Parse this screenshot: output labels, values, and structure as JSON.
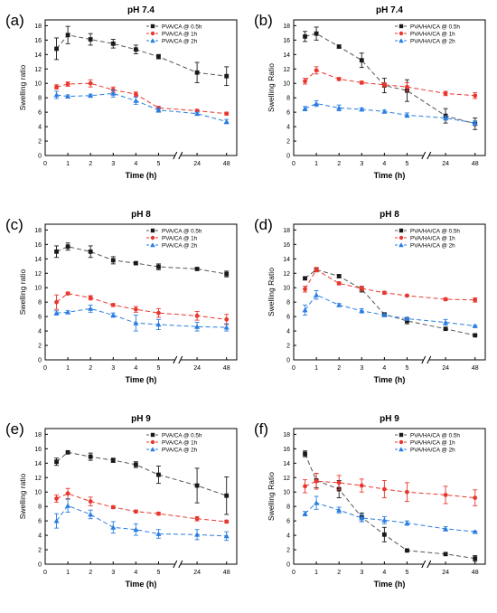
{
  "figure": {
    "x_tick_labels": [
      "0",
      "1",
      "2",
      "3",
      "4",
      "5",
      "24",
      "48"
    ],
    "y_tick_labels": [
      "0",
      "2",
      "4",
      "6",
      "8",
      "10",
      "12",
      "14",
      "16",
      "18"
    ],
    "colors": {
      "s0": "#1a1a1a",
      "s1": "#e8372e",
      "s2": "#2a7de1",
      "line0": "#555555",
      "line1": "#e8372e",
      "line2": "#2a7de1"
    },
    "markers": [
      "square",
      "circle",
      "triangle"
    ]
  },
  "chart_data": [
    {
      "type": "line",
      "panel_label": "(a)",
      "title": "pH 7.4",
      "xlabel": "Time (h)",
      "ylabel": "Swelling ratio",
      "ylim": [
        0,
        18
      ],
      "x": [
        0.5,
        1,
        2,
        3,
        4,
        5,
        24,
        48
      ],
      "legend_position": "top-right",
      "series": [
        {
          "name": "PVA/CA @ 0.5h",
          "values": [
            14.8,
            16.7,
            16.1,
            15.5,
            14.7,
            13.7,
            11.5,
            11.0
          ],
          "errors": [
            1.5,
            1.2,
            0.8,
            0.6,
            0.6,
            0.3,
            1.4,
            1.3
          ]
        },
        {
          "name": "PVA/CA @ 1h",
          "values": [
            9.5,
            9.9,
            10.0,
            9.1,
            8.5,
            6.6,
            6.2,
            5.8
          ],
          "errors": [
            0.3,
            0.3,
            0.5,
            0.4,
            0.3,
            0.2,
            0.2,
            0.2
          ]
        },
        {
          "name": "PVA/CA @ 2h",
          "values": [
            8.4,
            8.2,
            8.3,
            8.6,
            7.6,
            6.3,
            5.8,
            4.7
          ],
          "errors": [
            0.5,
            0.2,
            0.2,
            0.5,
            0.5,
            0.3,
            0.2,
            0.3
          ]
        }
      ]
    },
    {
      "type": "line",
      "panel_label": "(b)",
      "title": "pH 7.4",
      "xlabel": "Time (h)",
      "ylabel": "Swelling Ratio",
      "ylim": [
        0,
        18
      ],
      "x": [
        0.5,
        1,
        2,
        3,
        4,
        5,
        24,
        48
      ],
      "legend_position": "top-right",
      "series": [
        {
          "name": "PVA/HA/CA @ 0.5h",
          "values": [
            16.5,
            16.9,
            15.1,
            13.2,
            9.7,
            9.0,
            5.5,
            4.4
          ],
          "errors": [
            0.7,
            0.9,
            0.2,
            1.0,
            1.0,
            1.5,
            1.0,
            0.8
          ]
        },
        {
          "name": "PVA/HA/CA @ 1h",
          "values": [
            10.3,
            11.8,
            10.6,
            10.1,
            9.8,
            9.5,
            8.6,
            8.3
          ],
          "errors": [
            0.4,
            0.5,
            0.2,
            0.2,
            0.3,
            0.6,
            0.3,
            0.4
          ]
        },
        {
          "name": "PVA/HA/CA @ 2h",
          "values": [
            6.5,
            7.2,
            6.6,
            6.4,
            6.1,
            5.6,
            5.2,
            4.5
          ],
          "errors": [
            0.3,
            0.4,
            0.4,
            0.2,
            0.2,
            0.3,
            0.3,
            0.3
          ]
        }
      ]
    },
    {
      "type": "line",
      "panel_label": "(c)",
      "title": "pH 8",
      "xlabel": "Time (h)",
      "ylabel": "Swelling ratio",
      "ylim": [
        0,
        18
      ],
      "x": [
        0.5,
        1,
        2,
        3,
        4,
        5,
        24,
        48
      ],
      "legend_position": "top-right",
      "series": [
        {
          "name": "PVA/CA @ 0.5h",
          "values": [
            15.0,
            15.7,
            15.0,
            13.8,
            13.4,
            12.9,
            12.6,
            11.9
          ],
          "errors": [
            0.8,
            0.5,
            0.8,
            0.5,
            0.2,
            0.4,
            0.1,
            0.4
          ]
        },
        {
          "name": "PVA/CA @ 1h",
          "values": [
            8.0,
            9.2,
            8.6,
            7.6,
            7.0,
            6.5,
            6.1,
            5.6
          ],
          "errors": [
            1.0,
            0.2,
            0.3,
            0.2,
            0.4,
            0.6,
            0.6,
            0.7
          ]
        },
        {
          "name": "PVA/CA @ 2h",
          "values": [
            6.5,
            6.6,
            7.1,
            6.2,
            5.1,
            4.9,
            4.6,
            4.5
          ],
          "errors": [
            0.3,
            0.2,
            0.5,
            0.3,
            1.1,
            0.7,
            0.6,
            0.5
          ]
        }
      ]
    },
    {
      "type": "line",
      "panel_label": "(d)",
      "title": "pH 8",
      "xlabel": "Time (h)",
      "ylabel": "Swelling Ratio",
      "ylim": [
        0,
        18
      ],
      "x": [
        0.5,
        1,
        2,
        3,
        4,
        5,
        24,
        48
      ],
      "legend_position": "top-right",
      "series": [
        {
          "name": "PVA/HA/CA @ 0.5h",
          "values": [
            11.3,
            12.5,
            11.6,
            9.8,
            6.3,
            5.4,
            4.3,
            3.4
          ],
          "errors": [
            0.2,
            0.3,
            0.2,
            0.4,
            0.2,
            0.4,
            0.1,
            0.1
          ]
        },
        {
          "name": "PVA/HA/CA @ 1h",
          "values": [
            9.8,
            12.5,
            10.6,
            9.9,
            9.3,
            8.9,
            8.4,
            8.3
          ],
          "errors": [
            0.4,
            0.3,
            0.2,
            0.3,
            0.2,
            0.1,
            0.2,
            0.3
          ]
        },
        {
          "name": "PVA/HA/CA @ 2h",
          "values": [
            6.9,
            9.0,
            7.6,
            6.8,
            6.2,
            5.7,
            5.2,
            4.7
          ],
          "errors": [
            0.7,
            0.6,
            0.2,
            0.3,
            0.2,
            0.2,
            0.4,
            0.1
          ]
        }
      ]
    },
    {
      "type": "line",
      "panel_label": "(e)",
      "title": "pH 9",
      "xlabel": "Time (h)",
      "ylabel": "Swelling ratio",
      "ylim": [
        0,
        18
      ],
      "x": [
        0.5,
        1,
        2,
        3,
        4,
        5,
        24,
        48
      ],
      "legend_position": "top-right",
      "series": [
        {
          "name": "PVA/CA @ 0.5h",
          "values": [
            14.2,
            15.5,
            14.9,
            14.4,
            13.8,
            12.4,
            10.9,
            9.5
          ],
          "errors": [
            0.5,
            0.2,
            0.5,
            0.3,
            0.4,
            1.2,
            2.4,
            2.6
          ]
        },
        {
          "name": "PVA/CA @ 1h",
          "values": [
            9.1,
            9.8,
            8.7,
            7.9,
            7.3,
            7.0,
            6.3,
            5.9
          ],
          "errors": [
            0.5,
            0.7,
            0.6,
            0.2,
            0.2,
            0.2,
            0.3,
            0.2
          ]
        },
        {
          "name": "PVA/CA @ 2h",
          "values": [
            6.0,
            8.1,
            6.9,
            5.1,
            4.8,
            4.2,
            4.1,
            3.9
          ],
          "errors": [
            1.0,
            0.9,
            0.6,
            0.8,
            0.8,
            0.6,
            0.7,
            0.6
          ]
        }
      ]
    },
    {
      "type": "line",
      "panel_label": "(f)",
      "title": "pH 9",
      "xlabel": "Time (h)",
      "ylabel": "Swelling Ratio",
      "ylim": [
        0,
        18
      ],
      "x": [
        0.5,
        1,
        2,
        3,
        4,
        5,
        24,
        48
      ],
      "legend_position": "top-right",
      "series": [
        {
          "name": "PVA/HA/CA @ 0.5h",
          "values": [
            15.3,
            11.6,
            10.4,
            6.5,
            4.1,
            1.9,
            1.4,
            0.8
          ],
          "errors": [
            0.4,
            1.0,
            1.2,
            0.6,
            1.0,
            0.1,
            0.2,
            0.4
          ]
        },
        {
          "name": "PVA/HA/CA @ 1h",
          "values": [
            10.8,
            11.5,
            11.3,
            10.9,
            10.4,
            10.0,
            9.6,
            9.2
          ],
          "errors": [
            0.9,
            1.1,
            1.0,
            0.9,
            1.2,
            1.3,
            1.2,
            1.1
          ]
        },
        {
          "name": "PVA/HA/CA @ 2h",
          "values": [
            7.0,
            8.5,
            7.5,
            6.4,
            6.1,
            5.7,
            4.9,
            4.5
          ],
          "errors": [
            0.3,
            0.9,
            0.4,
            0.5,
            0.5,
            0.3,
            0.3,
            0.1
          ]
        }
      ]
    }
  ]
}
